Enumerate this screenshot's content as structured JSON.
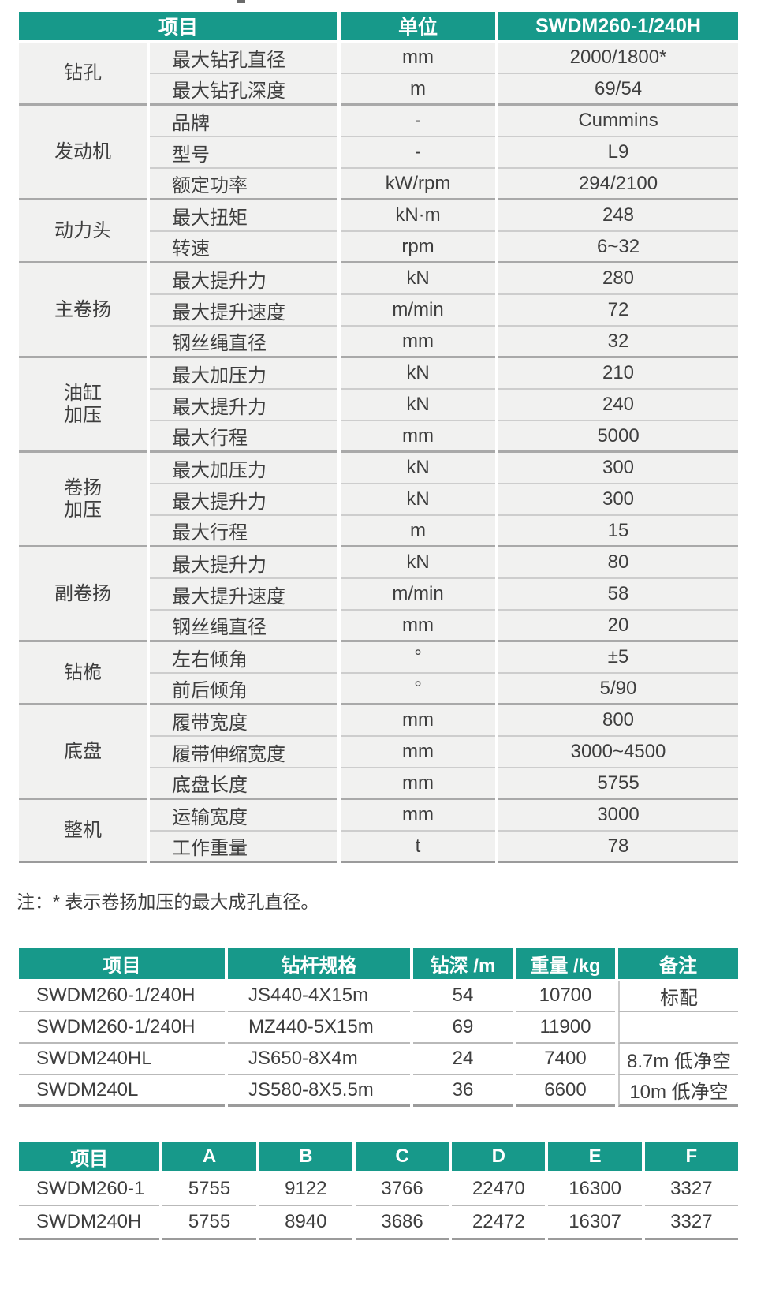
{
  "colors": {
    "header_teal": "#17998a",
    "row_gray": "#f1f1f0",
    "text": "#3e3e3e",
    "separator_light": "#cdcdcd",
    "separator_dark": "#a9a9a9"
  },
  "spec_table": {
    "headers": [
      "项目",
      "单位",
      "SWDM260-1/240H"
    ],
    "groups": [
      {
        "category": "钻孔",
        "rows": [
          {
            "item": "最大钻孔直径",
            "unit": "mm",
            "value": "2000/1800*"
          },
          {
            "item": "最大钻孔深度",
            "unit": "m",
            "value": "69/54"
          }
        ]
      },
      {
        "category": "发动机",
        "rows": [
          {
            "item": "品牌",
            "unit": "-",
            "value": "Cummins"
          },
          {
            "item": "型号",
            "unit": "-",
            "value": "L9"
          },
          {
            "item": "额定功率",
            "unit": "kW/rpm",
            "value": "294/2100"
          }
        ]
      },
      {
        "category": "动力头",
        "rows": [
          {
            "item": "最大扭矩",
            "unit": "kN·m",
            "value": "248"
          },
          {
            "item": "转速",
            "unit": "rpm",
            "value": "6~32"
          }
        ]
      },
      {
        "category": "主卷扬",
        "rows": [
          {
            "item": "最大提升力",
            "unit": "kN",
            "value": "280"
          },
          {
            "item": "最大提升速度",
            "unit": "m/min",
            "value": "72"
          },
          {
            "item": "钢丝绳直径",
            "unit": "mm",
            "value": "32"
          }
        ]
      },
      {
        "category": "油缸\n加压",
        "rows": [
          {
            "item": "最大加压力",
            "unit": "kN",
            "value": "210"
          },
          {
            "item": "最大提升力",
            "unit": "kN",
            "value": "240"
          },
          {
            "item": "最大行程",
            "unit": "mm",
            "value": "5000"
          }
        ]
      },
      {
        "category": "卷扬\n加压",
        "rows": [
          {
            "item": "最大加压力",
            "unit": "kN",
            "value": "300"
          },
          {
            "item": "最大提升力",
            "unit": "kN",
            "value": "300"
          },
          {
            "item": "最大行程",
            "unit": "m",
            "value": "15"
          }
        ]
      },
      {
        "category": "副卷扬",
        "rows": [
          {
            "item": "最大提升力",
            "unit": "kN",
            "value": "80"
          },
          {
            "item": "最大提升速度",
            "unit": "m/min",
            "value": "58"
          },
          {
            "item": "钢丝绳直径",
            "unit": "mm",
            "value": "20"
          }
        ]
      },
      {
        "category": "钻桅",
        "rows": [
          {
            "item": "左右倾角",
            "unit": "°",
            "value": "±5"
          },
          {
            "item": "前后倾角",
            "unit": "°",
            "value": "5/90"
          }
        ]
      },
      {
        "category": "底盘",
        "rows": [
          {
            "item": "履带宽度",
            "unit": "mm",
            "value": "800"
          },
          {
            "item": "履带伸缩宽度",
            "unit": "mm",
            "value": "3000~4500"
          },
          {
            "item": "底盘长度",
            "unit": "mm",
            "value": "5755"
          }
        ]
      },
      {
        "category": "整机",
        "rows": [
          {
            "item": "运输宽度",
            "unit": "mm",
            "value": "3000"
          },
          {
            "item": "工作重量",
            "unit": "t",
            "value": "78"
          }
        ]
      }
    ]
  },
  "note": "注：* 表示卷扬加压的最大成孔直径。",
  "rod_table": {
    "headers": [
      "项目",
      "钻杆规格",
      "钻深 /m",
      "重量 /kg",
      "备注"
    ],
    "rows": [
      [
        "SWDM260-1/240H",
        "JS440-4X15m",
        "54",
        "10700",
        "标配"
      ],
      [
        "SWDM260-1/240H",
        "MZ440-5X15m",
        "69",
        "11900",
        ""
      ],
      [
        "SWDM240HL",
        "JS650-8X4m",
        "24",
        "7400",
        "8.7m 低净空"
      ],
      [
        "SWDM240L",
        "JS580-8X5.5m",
        "36",
        "6600",
        "10m 低净空"
      ]
    ]
  },
  "dim_table": {
    "headers": [
      "项目",
      "A",
      "B",
      "C",
      "D",
      "E",
      "F"
    ],
    "rows": [
      [
        "SWDM260-1",
        "5755",
        "9122",
        "3766",
        "22470",
        "16300",
        "3327"
      ],
      [
        "SWDM240H",
        "5755",
        "8940",
        "3686",
        "22472",
        "16307",
        "3327"
      ]
    ]
  }
}
